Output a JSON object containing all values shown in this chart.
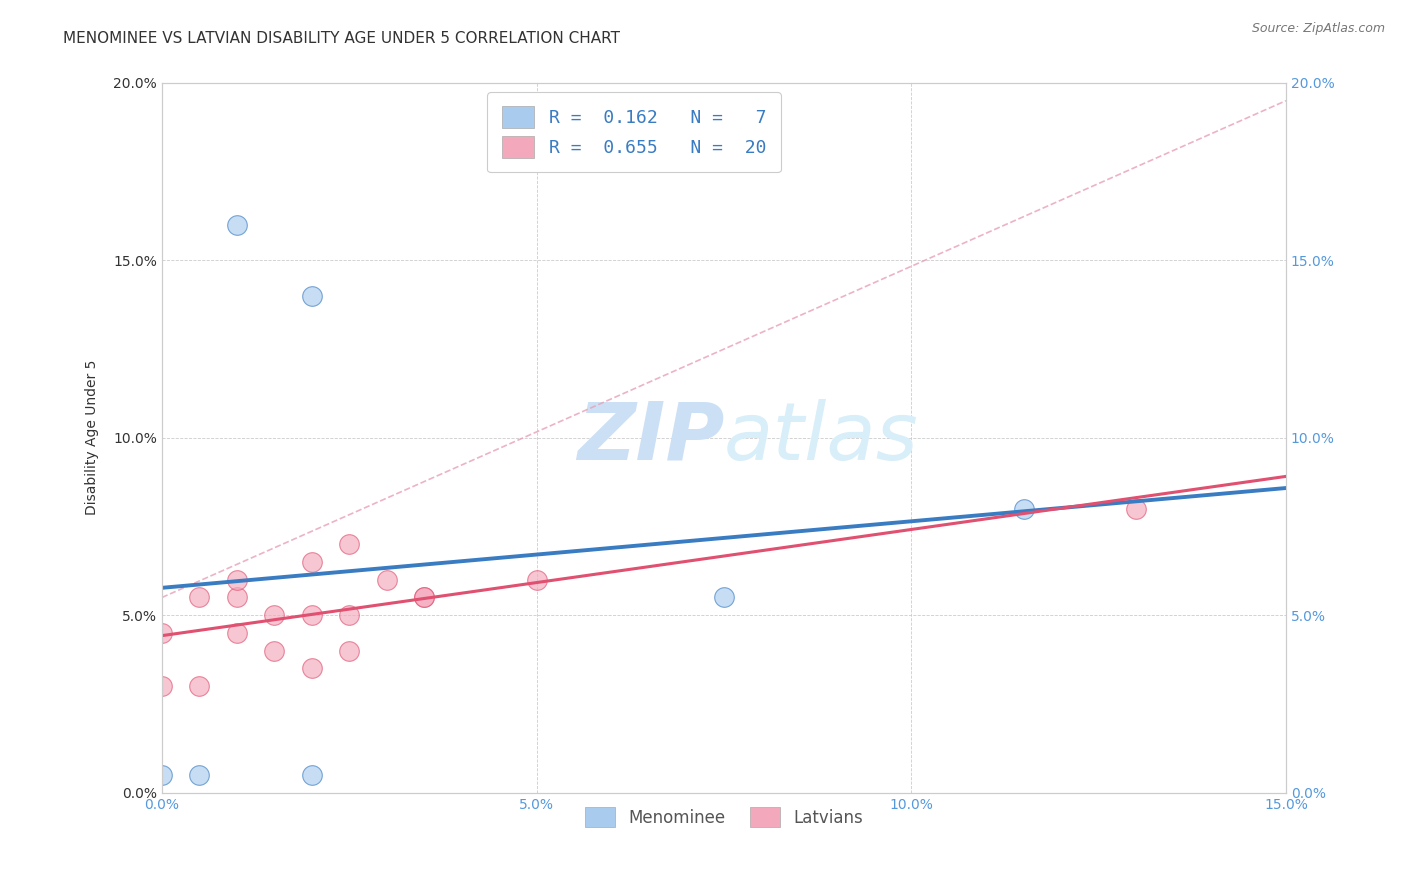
{
  "title": "MENOMINEE VS LATVIAN DISABILITY AGE UNDER 5 CORRELATION CHART",
  "source": "Source: ZipAtlas.com",
  "ylabel": "Disability Age Under 5",
  "xlim": [
    0.0,
    0.15
  ],
  "ylim": [
    0.0,
    0.2
  ],
  "xtick_vals": [
    0.0,
    0.05,
    0.1,
    0.15
  ],
  "ytick_vals": [
    0.0,
    0.05,
    0.1,
    0.15,
    0.2
  ],
  "menominee_color": "#A8CBEE",
  "latvian_color": "#F4A8BC",
  "menominee_line_color": "#3A7CC2",
  "latvian_line_color": "#E05070",
  "diag_line_color": "#E8A0B8",
  "legend_R1": "R =  0.162",
  "legend_N1": "N =   7",
  "legend_R2": "R =  0.655",
  "legend_N2": "N =  20",
  "legend_label1": "Menominee",
  "legend_label2": "Latvians",
  "menominee_x": [
    0.0,
    0.005,
    0.01,
    0.02,
    0.02,
    0.075,
    0.115
  ],
  "menominee_y": [
    0.005,
    0.005,
    0.16,
    0.14,
    0.005,
    0.055,
    0.08
  ],
  "latvian_x": [
    0.0,
    0.0,
    0.005,
    0.005,
    0.01,
    0.01,
    0.01,
    0.015,
    0.015,
    0.02,
    0.02,
    0.02,
    0.025,
    0.025,
    0.025,
    0.03,
    0.035,
    0.035,
    0.05,
    0.13
  ],
  "latvian_y": [
    0.03,
    0.045,
    0.03,
    0.055,
    0.045,
    0.055,
    0.06,
    0.04,
    0.05,
    0.035,
    0.05,
    0.065,
    0.04,
    0.05,
    0.07,
    0.06,
    0.055,
    0.055,
    0.06,
    0.08
  ],
  "background_color": "#ffffff",
  "grid_color": "#cccccc",
  "watermark_text": "ZIPatlas",
  "watermark_color": "#cce0f5",
  "title_fontsize": 11,
  "axis_label_fontsize": 10,
  "tick_fontsize": 10,
  "left_tick_color": "#333333",
  "right_tick_color": "#5599DD",
  "bottom_tick_color": "#5599DD",
  "legend_fontsize": 13
}
